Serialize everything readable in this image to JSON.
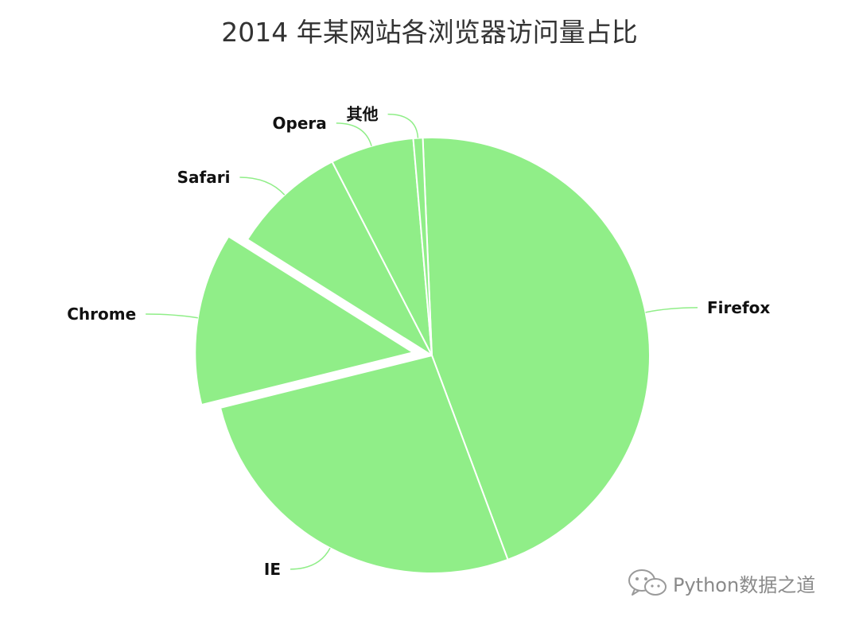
{
  "chart_data": {
    "type": "pie",
    "title": "2014 年某网站各浏览器访问量占比",
    "slices": [
      {
        "label": "Firefox",
        "value": 45.0,
        "exploded": false
      },
      {
        "label": "IE",
        "value": 26.8,
        "exploded": false
      },
      {
        "label": "Chrome",
        "value": 12.8,
        "exploded": true
      },
      {
        "label": "Safari",
        "value": 8.5,
        "exploded": false
      },
      {
        "label": "Opera",
        "value": 6.2,
        "exploded": false
      },
      {
        "label": "其他",
        "value": 0.7,
        "exploded": false
      }
    ],
    "colors": {
      "slice": "#90ee88",
      "leader": "#90ee88",
      "separator": "#ffffff"
    }
  },
  "watermark": {
    "icon": "wechat-icon",
    "text": "Python数据之道"
  }
}
